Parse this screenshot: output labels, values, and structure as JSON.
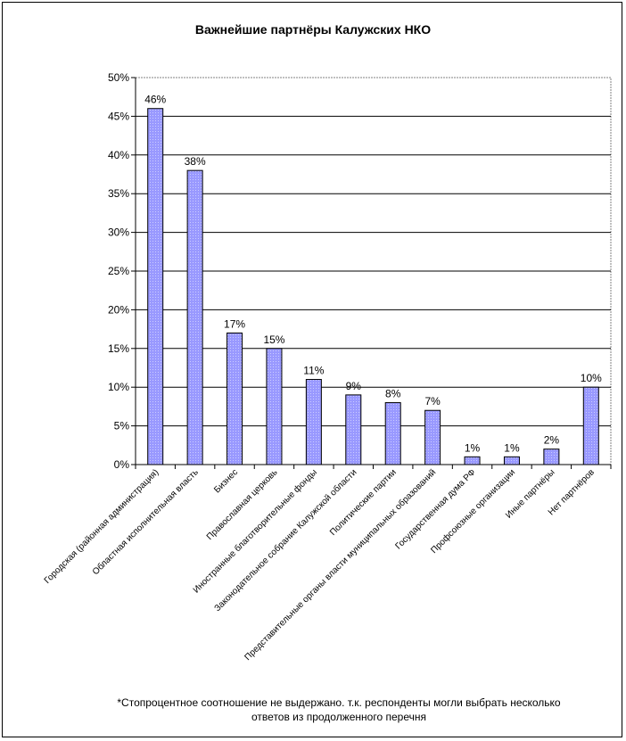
{
  "chart_data": {
    "type": "bar",
    "title": "Важнейшие партнёры Калужских НКО",
    "categories": [
      "Городская (районная администрация)",
      "Областная исполнительная власть",
      "Бизнес",
      "Православная церковь",
      "Иностранные благотворительные фонды",
      "Законодательное собрание Калужской области",
      "Политические партии",
      "Представительные органы власти муниципальных образований",
      "Государственная дума РФ",
      "Профсоюзные организации",
      "Иные партнёры",
      "Нет партнёров"
    ],
    "values": [
      46,
      38,
      17,
      15,
      11,
      9,
      8,
      7,
      1,
      1,
      2,
      10
    ],
    "value_labels": [
      "46%",
      "38%",
      "17%",
      "15%",
      "11%",
      "9%",
      "8%",
      "7%",
      "1%",
      "1%",
      "2%",
      "10%"
    ],
    "yticks": [
      "0%",
      "5%",
      "10%",
      "15%",
      "20%",
      "25%",
      "30%",
      "35%",
      "40%",
      "45%",
      "50%"
    ],
    "ylim": [
      0,
      50
    ],
    "grid": true,
    "bar_color": "#9999ff",
    "xlabel": "",
    "ylabel": ""
  },
  "footnote": {
    "line1": "*Стопроцентное соотношение не выдержано. т.к. респонденты могли выбрать несколько",
    "line2": "ответов из продолженного перечня"
  }
}
